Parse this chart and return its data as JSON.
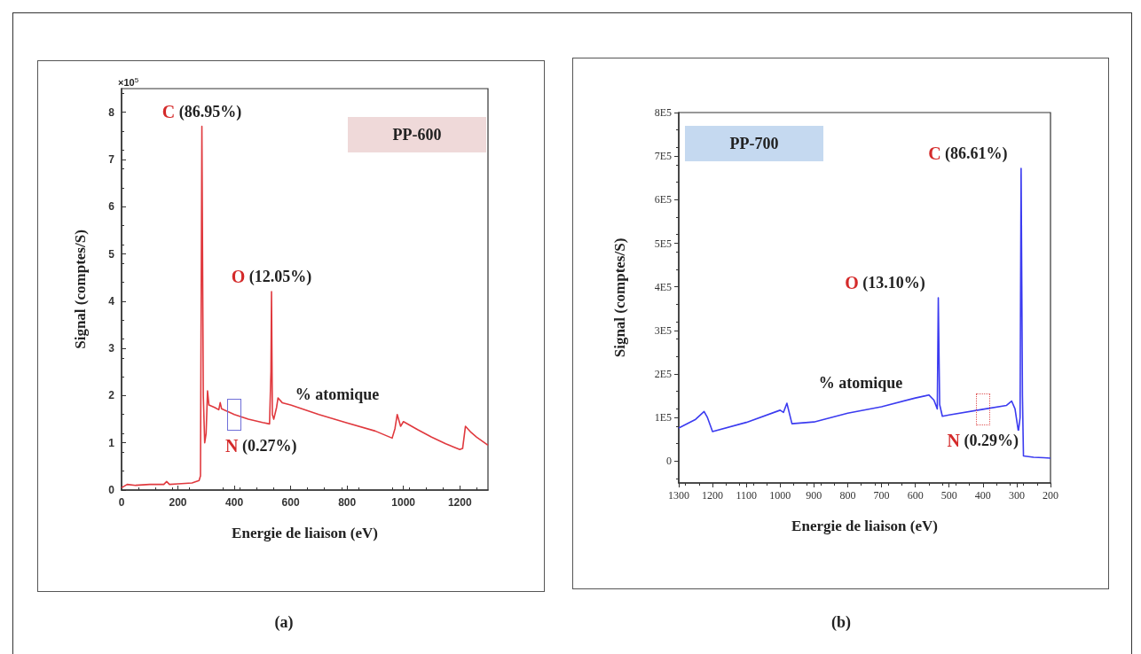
{
  "chart_data": [
    {
      "type": "line",
      "xlabel": "Energie de liaison (eV)",
      "ylabel": "Signal (comptes/S)",
      "xlim": [
        0,
        1300
      ],
      "xticks": [
        0,
        200,
        400,
        600,
        800,
        1000,
        1200
      ],
      "ylim": [
        0,
        8.5
      ],
      "yticks": [
        0,
        1,
        2,
        3,
        4,
        5,
        6,
        7,
        8
      ],
      "grid": false,
      "marker": "none",
      "line_style": "solid",
      "annotations": [
        "×10$^{5}$",
        "PP-600",
        "% atomique",
        "(a)",
        {
          "text": "C (86.95%)",
          "x": 285,
          "y": 7.7
        },
        {
          "text": "O (12.05%)",
          "x": 532,
          "y": 4.2
        },
        {
          "text": "N (0.27%)",
          "x": 400,
          "y": 1.6
        }
      ],
      "series": [
        {
          "color": "#e0393e",
          "x": [
            0,
            20,
            50,
            100,
            150,
            160,
            170,
            200,
            250,
            275,
            280,
            285,
            290,
            295,
            300,
            305,
            310,
            330,
            345,
            350,
            355,
            400,
            450,
            500,
            525,
            530,
            532,
            535,
            540,
            550,
            555,
            570,
            600,
            700,
            800,
            900,
            960,
            970,
            978,
            990,
            1000,
            1050,
            1100,
            1150,
            1200,
            1210,
            1220,
            1240,
            1260,
            1300
          ],
          "values": [
            0.05,
            0.12,
            0.1,
            0.12,
            0.12,
            0.18,
            0.12,
            0.13,
            0.15,
            0.2,
            0.3,
            7.7,
            2.0,
            1.0,
            1.2,
            2.1,
            1.8,
            1.75,
            1.7,
            1.85,
            1.72,
            1.6,
            1.5,
            1.43,
            1.4,
            2.5,
            4.2,
            1.6,
            1.5,
            1.75,
            1.95,
            1.85,
            1.8,
            1.6,
            1.42,
            1.25,
            1.1,
            1.3,
            1.6,
            1.35,
            1.45,
            1.28,
            1.12,
            0.98,
            0.86,
            0.88,
            1.35,
            1.22,
            1.12,
            0.95
          ]
        }
      ]
    },
    {
      "type": "line",
      "xlabel": "Energie de liaison (eV)",
      "ylabel": "Signal (comptes/S)",
      "xlim": [
        1300,
        200
      ],
      "xticks": [
        1300,
        1200,
        1100,
        1000,
        900,
        800,
        700,
        600,
        500,
        400,
        300,
        200
      ],
      "ylim": [
        -50000,
        800000
      ],
      "yticks": [
        {
          "value": 0,
          "label": "0"
        },
        {
          "value": 100000,
          "label": "1E5"
        },
        {
          "value": 200000,
          "label": "2E5"
        },
        {
          "value": 300000,
          "label": "3E5"
        },
        {
          "value": 400000,
          "label": "4E5"
        },
        {
          "value": 500000,
          "label": "5E5"
        },
        {
          "value": 600000,
          "label": "6E5"
        },
        {
          "value": 700000,
          "label": "7E5"
        },
        {
          "value": 800000,
          "label": "8E5"
        }
      ],
      "grid": false,
      "marker": "none",
      "line_style": "solid",
      "annotations": [
        "PP-700",
        "% atomique",
        "(b)",
        {
          "text": "C (86.61%)",
          "x": 287,
          "y": 672000
        },
        {
          "text": "O (13.10%)",
          "x": 532,
          "y": 375000
        },
        {
          "text": "N (0.29%)",
          "x": 400,
          "y": 119000
        }
      ],
      "series": [
        {
          "color": "#3b3bf0",
          "x": [
            1300,
            1250,
            1225,
            1215,
            1200,
            1100,
            1000,
            990,
            980,
            965,
            900,
            800,
            700,
            600,
            570,
            560,
            545,
            535,
            532,
            528,
            520,
            500,
            400,
            330,
            315,
            305,
            295,
            290,
            287,
            283,
            280,
            250,
            220,
            200
          ],
          "values": [
            76000,
            96000,
            114000,
            100000,
            68000,
            89000,
            117000,
            112000,
            133000,
            86000,
            90000,
            110000,
            125000,
            145000,
            150000,
            152000,
            140000,
            120000,
            375000,
            130000,
            103000,
            106000,
            119000,
            128000,
            138000,
            120000,
            68000,
            100000,
            672000,
            150000,
            12000,
            9000,
            8000,
            7000
          ]
        }
      ]
    }
  ]
}
